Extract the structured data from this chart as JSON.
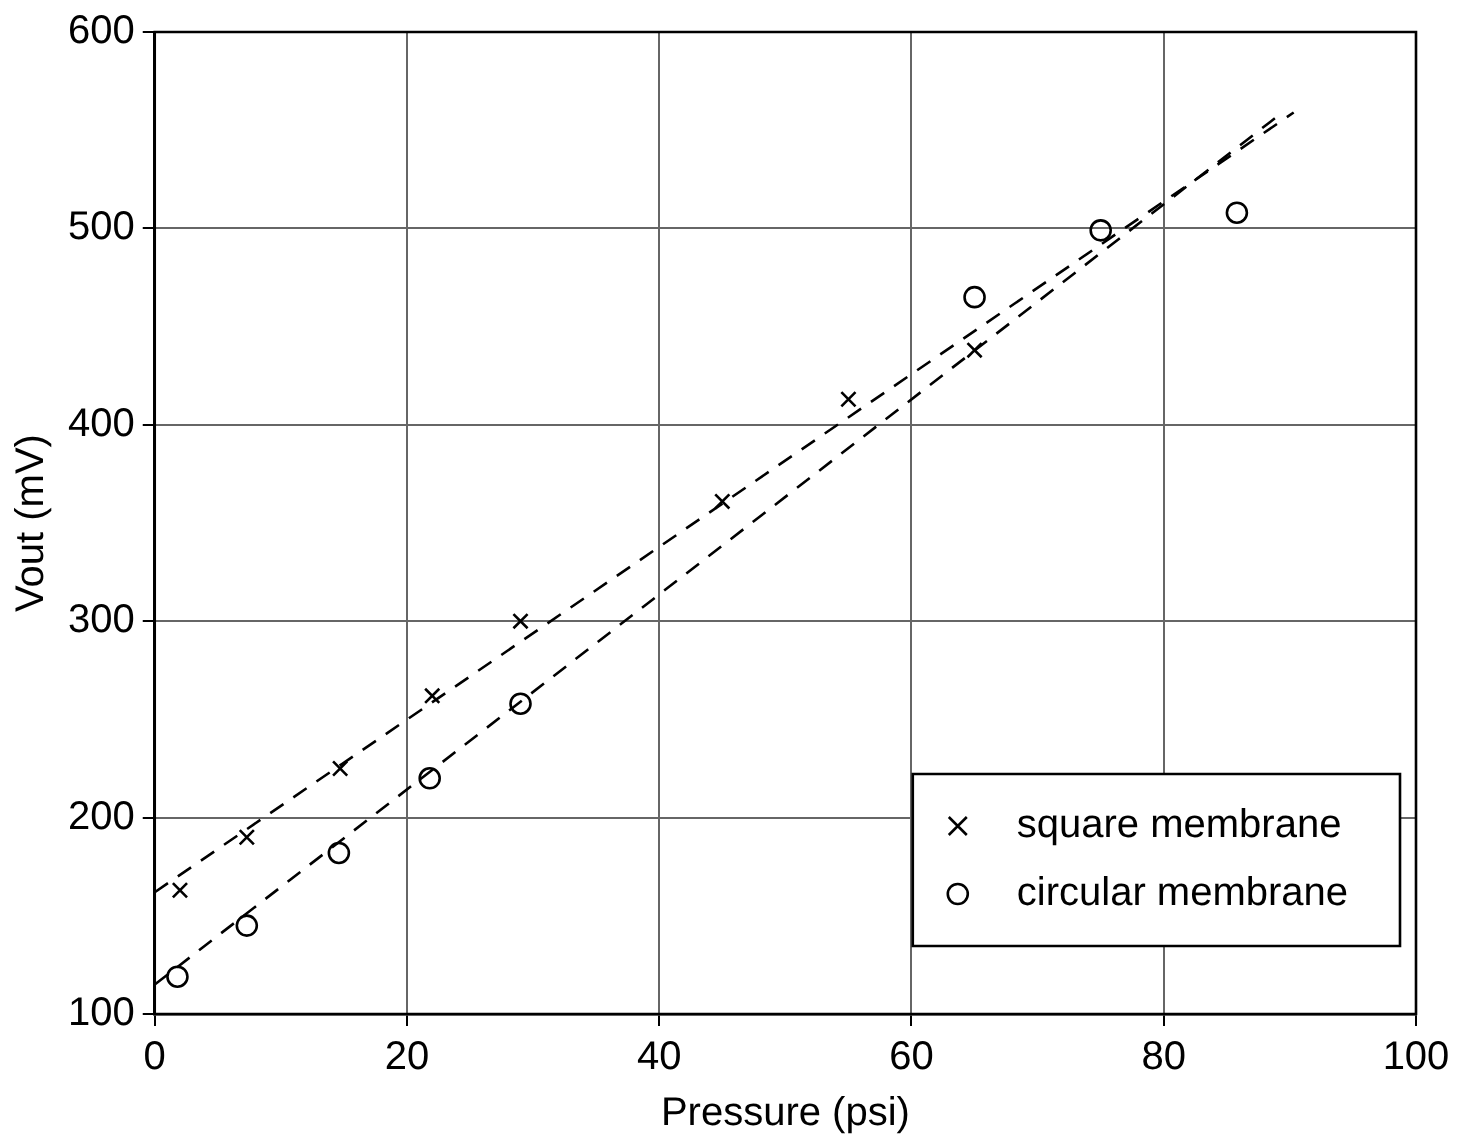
{
  "chart_data": {
    "type": "scatter",
    "xlabel": "Pressure (psi)",
    "ylabel": "Vout (mV)",
    "xlim": [
      0,
      100
    ],
    "xticks": [
      0,
      20,
      40,
      60,
      80,
      100
    ],
    "ylim": [
      100,
      600
    ],
    "yticks": [
      100,
      200,
      300,
      400,
      500,
      600
    ],
    "grid": true,
    "legend": "bottom right",
    "series": [
      {
        "name": "square membrane",
        "color": "#000000",
        "marker": "cross",
        "x": [
          2,
          7.3,
          14.7,
          22,
          29,
          45,
          55,
          65
        ],
        "values": [
          163,
          190,
          225,
          262,
          300,
          361,
          413,
          438
        ]
      },
      {
        "name": "circular membrane",
        "color": "#000000",
        "marker": "circle",
        "x": [
          1.8,
          7.3,
          14.6,
          21.8,
          29,
          65,
          75,
          85.8
        ],
        "values": [
          119,
          145,
          182,
          220,
          258,
          465,
          499,
          508
        ]
      },
      {
        "type": "line",
        "color": "#000000",
        "marker": "none",
        "line_style": "dashed",
        "x": [
          0,
          90.3
        ],
        "values": [
          162,
          559
        ]
      },
      {
        "type": "line",
        "color": "#000000",
        "marker": "none",
        "line_style": "dashed",
        "x": [
          0,
          89
        ],
        "values": [
          115,
          557
        ]
      }
    ]
  }
}
